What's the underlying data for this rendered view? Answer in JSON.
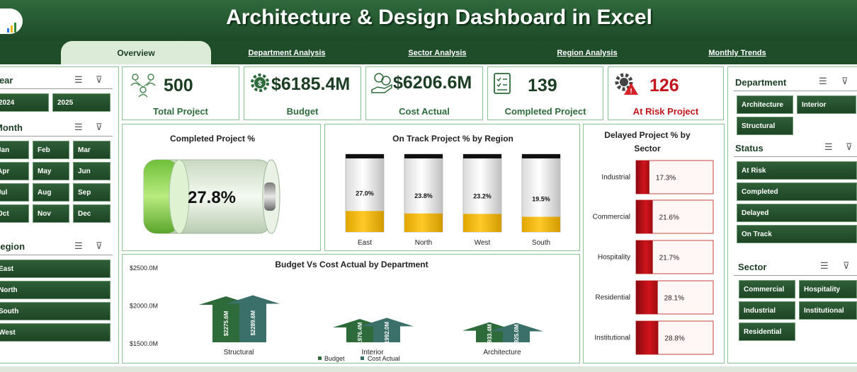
{
  "header": {
    "title": "Architecture & Design Dashboard in Excel"
  },
  "tabs": [
    {
      "label": "Overview",
      "active": true
    },
    {
      "label": "Department Analysis"
    },
    {
      "label": "Sector Analysis"
    },
    {
      "label": "Region Analysis"
    },
    {
      "label": "Monthly Trends"
    }
  ],
  "left_slicers": {
    "year": {
      "title": "Year",
      "items": [
        "2024",
        "2025"
      ]
    },
    "month": {
      "title": "Month",
      "items": [
        "Jan",
        "Feb",
        "Mar",
        "Apr",
        "May",
        "Jun",
        "Jul",
        "Aug",
        "Sep",
        "Oct",
        "Nov",
        "Dec"
      ]
    },
    "region": {
      "title": "Region",
      "items": [
        "East",
        "North",
        "South",
        "West"
      ]
    }
  },
  "kpis": [
    {
      "value": "500",
      "label": "Total Project",
      "icon": "team-network-icon"
    },
    {
      "value": "$6185.4M",
      "label": "Budget",
      "icon": "money-gear-icon"
    },
    {
      "value": "$6206.6M",
      "label": "Cost Actual",
      "icon": "hand-coins-icon"
    },
    {
      "value": "139",
      "label": "Completed Project",
      "icon": "checklist-icon"
    },
    {
      "value": "126",
      "label": "At Risk Project",
      "icon": "gear-warning-icon"
    }
  ],
  "colors": {
    "header": "#1f4d2a",
    "accent": "#2e6b3b",
    "risk": "#c0161c",
    "gold": "#f2b705",
    "battery": "#8fd14f"
  },
  "battery": {
    "title": "Completed Project %",
    "value_label": "27.8%",
    "value": 27.8
  },
  "chart_data": [
    {
      "type": "bar",
      "title": "On Track Project % by Region",
      "categories": [
        "East",
        "North",
        "West",
        "South"
      ],
      "values": [
        27.0,
        23.8,
        23.2,
        19.5
      ],
      "labels": [
        "27.0%",
        "23.8%",
        "23.2%",
        "19.5%"
      ],
      "ylim": [
        0,
        100
      ]
    },
    {
      "type": "bar",
      "orientation": "horizontal",
      "title": "Delayed Project % by Sector",
      "categories": [
        "Industrial",
        "Commercial",
        "Hospitality",
        "Residential",
        "Institutional"
      ],
      "values": [
        17.3,
        21.6,
        21.7,
        28.1,
        28.8
      ],
      "labels": [
        "17.3%",
        "21.6%",
        "21.7%",
        "28.1%",
        "28.8%"
      ],
      "xlim": [
        0,
        100
      ]
    },
    {
      "type": "bar",
      "title": "Budget Vs Cost Actual by Department",
      "categories": [
        "Structural",
        "Interior",
        "Architecture"
      ],
      "series": [
        {
          "name": "Budget",
          "values": [
            2275.6,
            1976.4,
            1933.4
          ],
          "labels": [
            "$2275.6M",
            "$1976.4M",
            "$1933.4M"
          ]
        },
        {
          "name": "Cost Actual",
          "values": [
            2289.6,
            1992.0,
            1925.0
          ],
          "labels": [
            "$2289.6M",
            "$1992.0M",
            "$1925.0M"
          ]
        }
      ],
      "yticks": [
        "$2500.0M",
        "$2000.0M",
        "$1500.0M"
      ],
      "ylim": [
        1500,
        2500
      ],
      "legend": "bottom"
    }
  ],
  "right_slicers": {
    "department": {
      "title": "Department",
      "items": [
        "Architecture",
        "Interior",
        "Structural"
      ]
    },
    "status": {
      "title": "Status",
      "items": [
        "At Risk",
        "Completed",
        "Delayed",
        "On Track"
      ]
    },
    "sector": {
      "title": "Sector",
      "items": [
        "Commercial",
        "Hospitality",
        "Industrial",
        "Institutional",
        "Residential"
      ]
    }
  }
}
